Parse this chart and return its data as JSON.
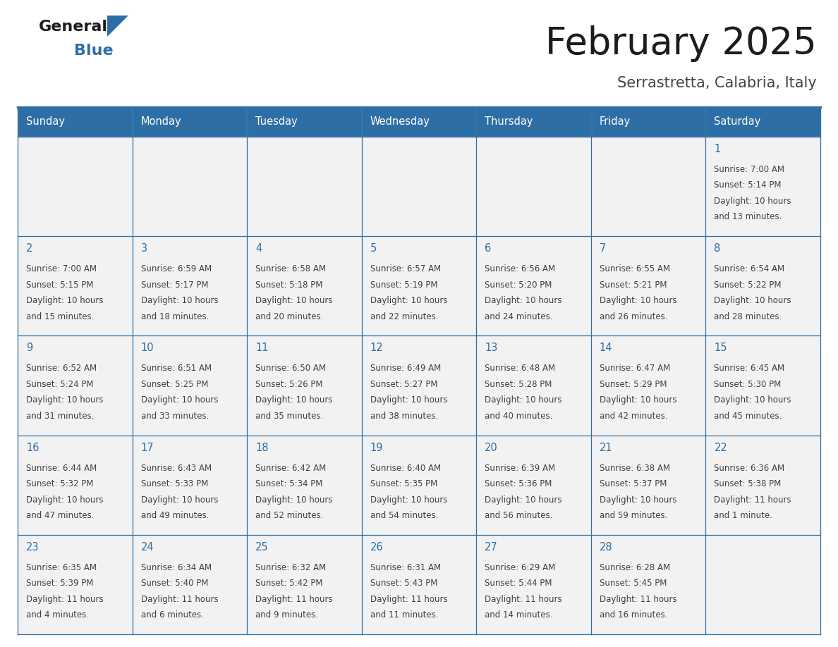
{
  "title": "February 2025",
  "subtitle": "Serrastretta, Calabria, Italy",
  "header_bg": "#2E6EA6",
  "header_text": "#FFFFFF",
  "cell_bg": "#F2F2F2",
  "border_color": "#2E6EA6",
  "day_number_color": "#2E6EA6",
  "text_color": "#404040",
  "weekdays": [
    "Sunday",
    "Monday",
    "Tuesday",
    "Wednesday",
    "Thursday",
    "Friday",
    "Saturday"
  ],
  "days_data": [
    {
      "day": 1,
      "col": 6,
      "row": 0,
      "sunrise": "7:00 AM",
      "sunset": "5:14 PM",
      "daylight_line1": "Daylight: 10 hours",
      "daylight_line2": "and 13 minutes."
    },
    {
      "day": 2,
      "col": 0,
      "row": 1,
      "sunrise": "7:00 AM",
      "sunset": "5:15 PM",
      "daylight_line1": "Daylight: 10 hours",
      "daylight_line2": "and 15 minutes."
    },
    {
      "day": 3,
      "col": 1,
      "row": 1,
      "sunrise": "6:59 AM",
      "sunset": "5:17 PM",
      "daylight_line1": "Daylight: 10 hours",
      "daylight_line2": "and 18 minutes."
    },
    {
      "day": 4,
      "col": 2,
      "row": 1,
      "sunrise": "6:58 AM",
      "sunset": "5:18 PM",
      "daylight_line1": "Daylight: 10 hours",
      "daylight_line2": "and 20 minutes."
    },
    {
      "day": 5,
      "col": 3,
      "row": 1,
      "sunrise": "6:57 AM",
      "sunset": "5:19 PM",
      "daylight_line1": "Daylight: 10 hours",
      "daylight_line2": "and 22 minutes."
    },
    {
      "day": 6,
      "col": 4,
      "row": 1,
      "sunrise": "6:56 AM",
      "sunset": "5:20 PM",
      "daylight_line1": "Daylight: 10 hours",
      "daylight_line2": "and 24 minutes."
    },
    {
      "day": 7,
      "col": 5,
      "row": 1,
      "sunrise": "6:55 AM",
      "sunset": "5:21 PM",
      "daylight_line1": "Daylight: 10 hours",
      "daylight_line2": "and 26 minutes."
    },
    {
      "day": 8,
      "col": 6,
      "row": 1,
      "sunrise": "6:54 AM",
      "sunset": "5:22 PM",
      "daylight_line1": "Daylight: 10 hours",
      "daylight_line2": "and 28 minutes."
    },
    {
      "day": 9,
      "col": 0,
      "row": 2,
      "sunrise": "6:52 AM",
      "sunset": "5:24 PM",
      "daylight_line1": "Daylight: 10 hours",
      "daylight_line2": "and 31 minutes."
    },
    {
      "day": 10,
      "col": 1,
      "row": 2,
      "sunrise": "6:51 AM",
      "sunset": "5:25 PM",
      "daylight_line1": "Daylight: 10 hours",
      "daylight_line2": "and 33 minutes."
    },
    {
      "day": 11,
      "col": 2,
      "row": 2,
      "sunrise": "6:50 AM",
      "sunset": "5:26 PM",
      "daylight_line1": "Daylight: 10 hours",
      "daylight_line2": "and 35 minutes."
    },
    {
      "day": 12,
      "col": 3,
      "row": 2,
      "sunrise": "6:49 AM",
      "sunset": "5:27 PM",
      "daylight_line1": "Daylight: 10 hours",
      "daylight_line2": "and 38 minutes."
    },
    {
      "day": 13,
      "col": 4,
      "row": 2,
      "sunrise": "6:48 AM",
      "sunset": "5:28 PM",
      "daylight_line1": "Daylight: 10 hours",
      "daylight_line2": "and 40 minutes."
    },
    {
      "day": 14,
      "col": 5,
      "row": 2,
      "sunrise": "6:47 AM",
      "sunset": "5:29 PM",
      "daylight_line1": "Daylight: 10 hours",
      "daylight_line2": "and 42 minutes."
    },
    {
      "day": 15,
      "col": 6,
      "row": 2,
      "sunrise": "6:45 AM",
      "sunset": "5:30 PM",
      "daylight_line1": "Daylight: 10 hours",
      "daylight_line2": "and 45 minutes."
    },
    {
      "day": 16,
      "col": 0,
      "row": 3,
      "sunrise": "6:44 AM",
      "sunset": "5:32 PM",
      "daylight_line1": "Daylight: 10 hours",
      "daylight_line2": "and 47 minutes."
    },
    {
      "day": 17,
      "col": 1,
      "row": 3,
      "sunrise": "6:43 AM",
      "sunset": "5:33 PM",
      "daylight_line1": "Daylight: 10 hours",
      "daylight_line2": "and 49 minutes."
    },
    {
      "day": 18,
      "col": 2,
      "row": 3,
      "sunrise": "6:42 AM",
      "sunset": "5:34 PM",
      "daylight_line1": "Daylight: 10 hours",
      "daylight_line2": "and 52 minutes."
    },
    {
      "day": 19,
      "col": 3,
      "row": 3,
      "sunrise": "6:40 AM",
      "sunset": "5:35 PM",
      "daylight_line1": "Daylight: 10 hours",
      "daylight_line2": "and 54 minutes."
    },
    {
      "day": 20,
      "col": 4,
      "row": 3,
      "sunrise": "6:39 AM",
      "sunset": "5:36 PM",
      "daylight_line1": "Daylight: 10 hours",
      "daylight_line2": "and 56 minutes."
    },
    {
      "day": 21,
      "col": 5,
      "row": 3,
      "sunrise": "6:38 AM",
      "sunset": "5:37 PM",
      "daylight_line1": "Daylight: 10 hours",
      "daylight_line2": "and 59 minutes."
    },
    {
      "day": 22,
      "col": 6,
      "row": 3,
      "sunrise": "6:36 AM",
      "sunset": "5:38 PM",
      "daylight_line1": "Daylight: 11 hours",
      "daylight_line2": "and 1 minute."
    },
    {
      "day": 23,
      "col": 0,
      "row": 4,
      "sunrise": "6:35 AM",
      "sunset": "5:39 PM",
      "daylight_line1": "Daylight: 11 hours",
      "daylight_line2": "and 4 minutes."
    },
    {
      "day": 24,
      "col": 1,
      "row": 4,
      "sunrise": "6:34 AM",
      "sunset": "5:40 PM",
      "daylight_line1": "Daylight: 11 hours",
      "daylight_line2": "and 6 minutes."
    },
    {
      "day": 25,
      "col": 2,
      "row": 4,
      "sunrise": "6:32 AM",
      "sunset": "5:42 PM",
      "daylight_line1": "Daylight: 11 hours",
      "daylight_line2": "and 9 minutes."
    },
    {
      "day": 26,
      "col": 3,
      "row": 4,
      "sunrise": "6:31 AM",
      "sunset": "5:43 PM",
      "daylight_line1": "Daylight: 11 hours",
      "daylight_line2": "and 11 minutes."
    },
    {
      "day": 27,
      "col": 4,
      "row": 4,
      "sunrise": "6:29 AM",
      "sunset": "5:44 PM",
      "daylight_line1": "Daylight: 11 hours",
      "daylight_line2": "and 14 minutes."
    },
    {
      "day": 28,
      "col": 5,
      "row": 4,
      "sunrise": "6:28 AM",
      "sunset": "5:45 PM",
      "daylight_line1": "Daylight: 11 hours",
      "daylight_line2": "and 16 minutes."
    }
  ],
  "fig_width": 11.88,
  "fig_height": 9.18,
  "dpi": 100
}
